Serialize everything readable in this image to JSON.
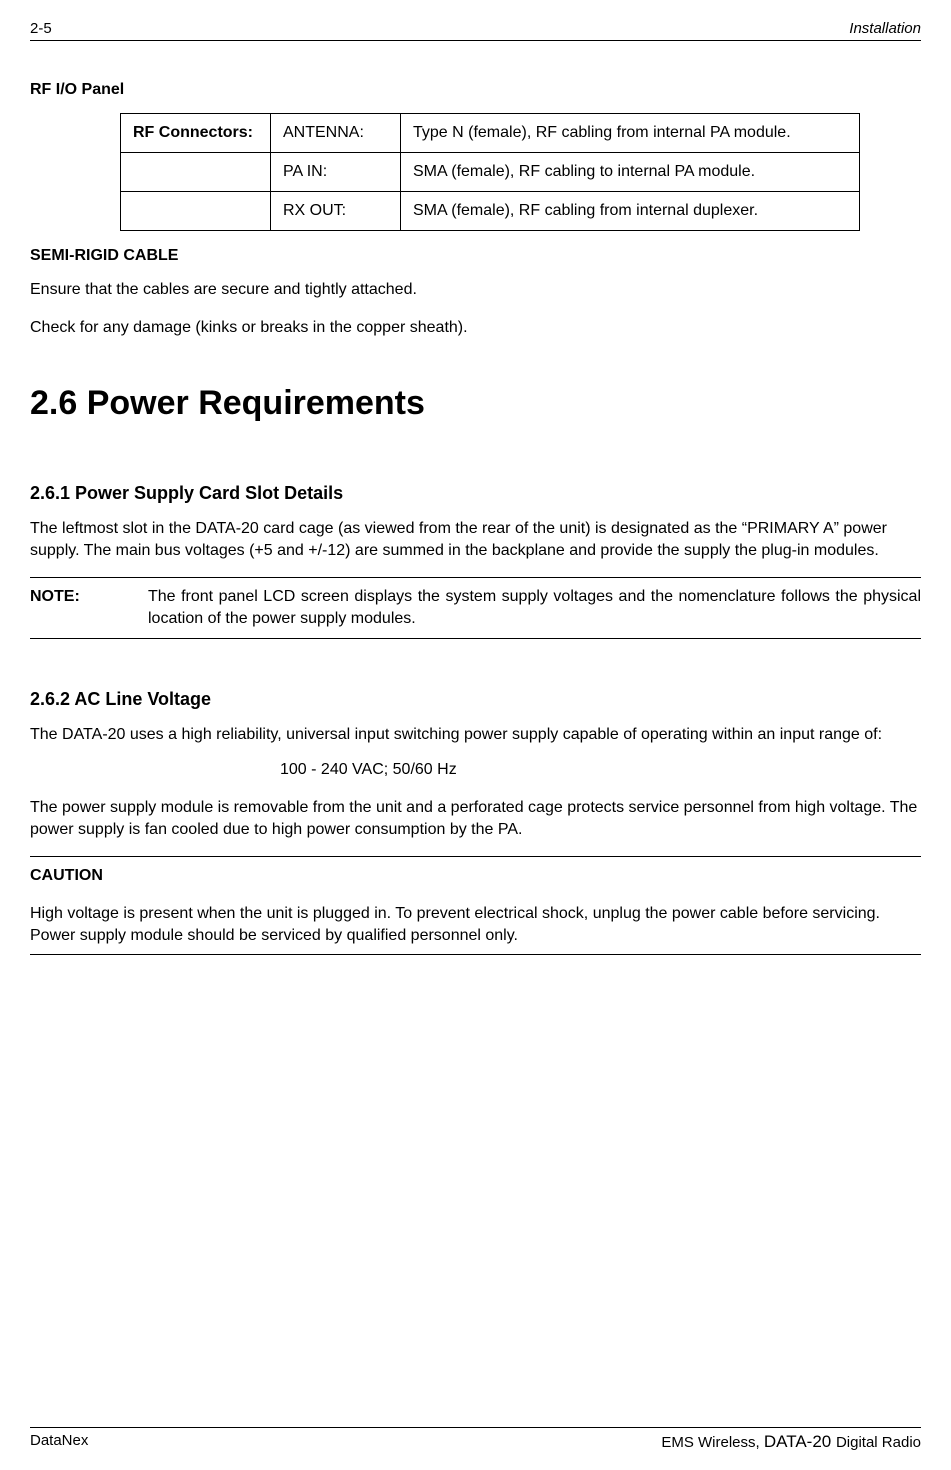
{
  "header": {
    "left": "2-5",
    "right": "Installation"
  },
  "rf_panel": {
    "title": "RF I/O Panel",
    "rows": [
      {
        "c1": "RF Connectors:",
        "c2": "ANTENNA:",
        "c3": "Type N (female), RF cabling from internal PA module."
      },
      {
        "c1": "",
        "c2": "PA IN:",
        "c3": "SMA (female), RF cabling to internal PA module."
      },
      {
        "c1": "",
        "c2": "RX OUT:",
        "c3": "SMA (female), RF cabling from internal duplexer."
      }
    ]
  },
  "semi_rigid": {
    "title": "SEMI-RIGID CABLE",
    "p1": "Ensure that the cables are secure and tightly attached.",
    "p2": "Check for any damage (kinks or breaks in the copper sheath)."
  },
  "sec26": {
    "title": "2.6 Power Requirements"
  },
  "sec261": {
    "title": "2.6.1  Power Supply Card Slot Details",
    "p1": "The leftmost slot in the DATA-20 card cage (as viewed from the rear of the unit) is designated as the “PRIMARY A” power supply.  The main bus voltages (+5 and +/-12) are summed in the backplane and provide the supply the plug-in modules.",
    "note_label": "NOTE:",
    "note_text": "The front panel LCD screen displays the system supply voltages and the nomenclature follows the physical location of the power supply modules."
  },
  "sec262": {
    "title": "2.6.2  AC Line Voltage",
    "p1": "The DATA-20 uses a high reliability, universal input switching power supply capable of operating within an input range of:",
    "spec": "100 - 240 VAC; 50/60 Hz",
    "p2": "The power supply module is removable from the unit and a perforated cage protects service personnel from high voltage.  The power supply is fan cooled due to high power consumption by the PA.",
    "caution_label": "CAUTION",
    "caution_text": "High voltage is present when the unit is plugged in. To prevent electrical shock, unplug the power cable before servicing. Power supply module should be serviced by qualified personnel only."
  },
  "footer": {
    "left": "DataNex",
    "right_prefix": "EMS Wireless, ",
    "right_big": "DATA-20 ",
    "right_suffix": "Digital Radio"
  }
}
